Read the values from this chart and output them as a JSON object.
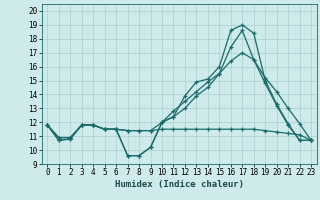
{
  "title": "",
  "xlabel": "Humidex (Indice chaleur)",
  "ylabel": "",
  "xlim": [
    -0.5,
    23.5
  ],
  "ylim": [
    9,
    20.5
  ],
  "yticks": [
    9,
    10,
    11,
    12,
    13,
    14,
    15,
    16,
    17,
    18,
    19,
    20
  ],
  "xticks": [
    0,
    1,
    2,
    3,
    4,
    5,
    6,
    7,
    8,
    9,
    10,
    11,
    12,
    13,
    14,
    15,
    16,
    17,
    18,
    19,
    20,
    21,
    22,
    23
  ],
  "bg_color": "#ceeaea",
  "grid_color": "#aacfcf",
  "line_color": "#1a6b6b",
  "line1_x": [
    0,
    1,
    2,
    3,
    4,
    5,
    6,
    7,
    8,
    9,
    10,
    11,
    12,
    13,
    14,
    15,
    16,
    17,
    18,
    19,
    20,
    21,
    22,
    23
  ],
  "line1_y": [
    11.8,
    10.7,
    10.8,
    11.8,
    11.8,
    11.5,
    11.5,
    9.6,
    9.6,
    10.2,
    12.0,
    12.4,
    13.9,
    14.9,
    15.1,
    16.0,
    18.6,
    19.0,
    18.4,
    15.0,
    13.3,
    11.9,
    10.7,
    10.7
  ],
  "line2_x": [
    0,
    1,
    2,
    3,
    4,
    5,
    6,
    7,
    8,
    9,
    10,
    11,
    12,
    13,
    14,
    15,
    16,
    17,
    18,
    19,
    20,
    21,
    22,
    23
  ],
  "line2_y": [
    11.8,
    10.7,
    10.8,
    11.8,
    11.8,
    11.5,
    11.5,
    9.6,
    9.6,
    10.2,
    12.0,
    12.4,
    13.0,
    13.9,
    14.5,
    15.5,
    17.4,
    18.6,
    16.5,
    14.8,
    13.2,
    11.8,
    10.7,
    10.7
  ],
  "line3_x": [
    0,
    1,
    2,
    3,
    4,
    5,
    6,
    7,
    8,
    9,
    10,
    11,
    12,
    13,
    14,
    15,
    16,
    17,
    18,
    19,
    20,
    21,
    22,
    23
  ],
  "line3_y": [
    11.8,
    10.9,
    10.9,
    11.8,
    11.8,
    11.5,
    11.5,
    11.4,
    11.4,
    11.4,
    11.5,
    11.5,
    11.5,
    11.5,
    11.5,
    11.5,
    11.5,
    11.5,
    11.5,
    11.4,
    11.3,
    11.2,
    11.1,
    10.7
  ],
  "line4_x": [
    0,
    1,
    2,
    3,
    4,
    5,
    6,
    7,
    8,
    9,
    10,
    11,
    12,
    13,
    14,
    15,
    16,
    17,
    18,
    19,
    20,
    21,
    22,
    23
  ],
  "line4_y": [
    11.8,
    10.9,
    10.9,
    11.8,
    11.8,
    11.5,
    11.5,
    11.4,
    11.4,
    11.4,
    12.0,
    12.8,
    13.5,
    14.2,
    14.9,
    15.5,
    16.4,
    17.0,
    16.5,
    15.2,
    14.2,
    13.0,
    11.9,
    10.7
  ]
}
